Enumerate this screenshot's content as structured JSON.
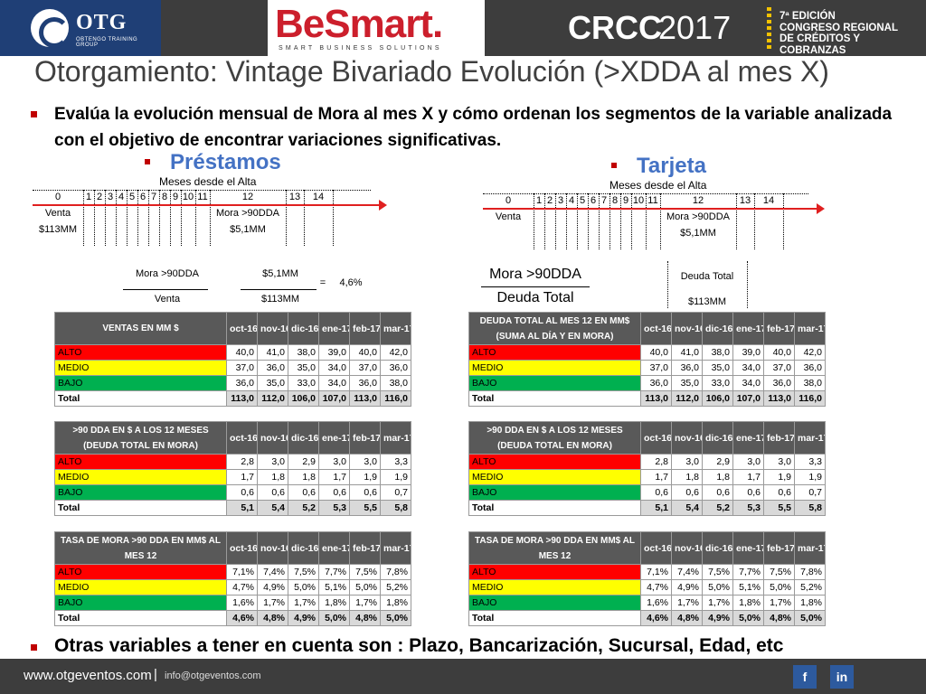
{
  "header": {
    "otg_name": "OTG",
    "otg_sub": "OBTENGO TRAINING GROUP",
    "besmart": "BeSmart.",
    "besmart_sub": "SMART BUSINESS SOLUTIONS",
    "crcc": "CRCC",
    "crcc_year": "2017",
    "crcc_line1": "7ª EDICIÓN",
    "crcc_line2": "CONGRESO REGIONAL",
    "crcc_line3": "DE CRÉDITOS Y COBRANZAS"
  },
  "title": "Otorgamiento: Vintage Bivariado Evolución (>XDDA al mes X)",
  "bullet_top": "Evalúa la evolución mensual de Mora al mes X y cómo ordenan los segmentos de la variable analizada con el objetivo de encontrar variaciones significativas.",
  "prestamos": {
    "heading": "Préstamos",
    "timeline_title": "Meses desde el Alta",
    "start_label": "Venta",
    "start_value": "$113MM",
    "end_label": "Mora >90DDA",
    "end_value": "$5,1MM",
    "formula": {
      "num_label": "Mora >90DDA",
      "den_label": "Venta",
      "num_value": "$5,1MM",
      "den_value": "$113MM",
      "equals": "=",
      "result": "4,6%"
    }
  },
  "tarjeta": {
    "heading": "Tarjeta",
    "timeline_title": "Meses desde el Alta",
    "start_label": "Venta",
    "end_label": "Mora >90DDA",
    "end_value": "$5,1MM",
    "formula": {
      "num_label": "Mora >90DDA",
      "den_label": "Deuda Total",
      "right_label": "Deuda Total",
      "right_value": "$113MM"
    }
  },
  "timeline_ticks": [
    "0",
    "1",
    "2",
    "3",
    "4",
    "5",
    "6",
    "7",
    "8",
    "9",
    "10",
    "11",
    "12",
    "13",
    "14"
  ],
  "months": [
    "oct-16",
    "nov-16",
    "dic-16",
    "ene-17",
    "feb-17",
    "mar-17"
  ],
  "tables": {
    "p1": {
      "header": "VENTAS  EN MM  $",
      "rows": [
        {
          "label": "ALTO",
          "v": [
            "40,0",
            "41,0",
            "38,0",
            "39,0",
            "40,0",
            "42,0"
          ]
        },
        {
          "label": "MEDIO",
          "v": [
            "37,0",
            "36,0",
            "35,0",
            "34,0",
            "37,0",
            "36,0"
          ]
        },
        {
          "label": "BAJO",
          "v": [
            "36,0",
            "35,0",
            "33,0",
            "34,0",
            "36,0",
            "38,0"
          ]
        },
        {
          "label": "Total",
          "v": [
            "113,0",
            "112,0",
            "106,0",
            "107,0",
            "113,0",
            "116,0"
          ]
        }
      ]
    },
    "t1": {
      "header": "DEUDA TOTAL AL MES 12 EN MM$ (SUMA AL DÍA Y EN MORA)",
      "rows": [
        {
          "label": "ALTO",
          "v": [
            "40,0",
            "41,0",
            "38,0",
            "39,0",
            "40,0",
            "42,0"
          ]
        },
        {
          "label": "MEDIO",
          "v": [
            "37,0",
            "36,0",
            "35,0",
            "34,0",
            "37,0",
            "36,0"
          ]
        },
        {
          "label": "BAJO",
          "v": [
            "36,0",
            "35,0",
            "33,0",
            "34,0",
            "36,0",
            "38,0"
          ]
        },
        {
          "label": "Total",
          "v": [
            "113,0",
            "112,0",
            "106,0",
            "107,0",
            "113,0",
            "116,0"
          ]
        }
      ]
    },
    "p2": {
      "header": ">90 DDA EN $ A LOS 12 MESES (DEUDA TOTAL EN MORA)",
      "rows": [
        {
          "label": "ALTO",
          "v": [
            "2,8",
            "3,0",
            "2,9",
            "3,0",
            "3,0",
            "3,3"
          ]
        },
        {
          "label": "MEDIO",
          "v": [
            "1,7",
            "1,8",
            "1,8",
            "1,7",
            "1,9",
            "1,9"
          ]
        },
        {
          "label": "BAJO",
          "v": [
            "0,6",
            "0,6",
            "0,6",
            "0,6",
            "0,6",
            "0,7"
          ]
        },
        {
          "label": "Total",
          "v": [
            "5,1",
            "5,4",
            "5,2",
            "5,3",
            "5,5",
            "5,8"
          ]
        }
      ]
    },
    "t2": {
      "header": ">90 DDA EN $ A LOS 12 MESES (DEUDA TOTAL EN MORA)",
      "rows": [
        {
          "label": "ALTO",
          "v": [
            "2,8",
            "3,0",
            "2,9",
            "3,0",
            "3,0",
            "3,3"
          ]
        },
        {
          "label": "MEDIO",
          "v": [
            "1,7",
            "1,8",
            "1,8",
            "1,7",
            "1,9",
            "1,9"
          ]
        },
        {
          "label": "BAJO",
          "v": [
            "0,6",
            "0,6",
            "0,6",
            "0,6",
            "0,6",
            "0,7"
          ]
        },
        {
          "label": "Total",
          "v": [
            "5,1",
            "5,4",
            "5,2",
            "5,3",
            "5,5",
            "5,8"
          ]
        }
      ]
    },
    "p3": {
      "header": "TASA DE MORA  >90 DDA EN MM$ AL MES 12",
      "rows": [
        {
          "label": "ALTO",
          "v": [
            "7,1%",
            "7,4%",
            "7,5%",
            "7,7%",
            "7,5%",
            "7,8%"
          ]
        },
        {
          "label": "MEDIO",
          "v": [
            "4,7%",
            "4,9%",
            "5,0%",
            "5,1%",
            "5,0%",
            "5,2%"
          ]
        },
        {
          "label": "BAJO",
          "v": [
            "1,6%",
            "1,7%",
            "1,7%",
            "1,8%",
            "1,7%",
            "1,8%"
          ]
        },
        {
          "label": "Total",
          "v": [
            "4,6%",
            "4,8%",
            "4,9%",
            "5,0%",
            "4,8%",
            "5,0%"
          ]
        }
      ]
    },
    "t3": {
      "header": "TASA DE MORA  >90 DDA EN MM$ AL MES 12",
      "rows": [
        {
          "label": "ALTO",
          "v": [
            "7,1%",
            "7,4%",
            "7,5%",
            "7,7%",
            "7,5%",
            "7,8%"
          ]
        },
        {
          "label": "MEDIO",
          "v": [
            "4,7%",
            "4,9%",
            "5,0%",
            "5,1%",
            "5,0%",
            "5,2%"
          ]
        },
        {
          "label": "BAJO",
          "v": [
            "1,6%",
            "1,7%",
            "1,7%",
            "1,8%",
            "1,7%",
            "1,8%"
          ]
        },
        {
          "label": "Total",
          "v": [
            "4,6%",
            "4,8%",
            "4,9%",
            "5,0%",
            "4,8%",
            "5,0%"
          ]
        }
      ]
    }
  },
  "bullet_bottom": "Otras variables a tener en cuenta son : Plazo, Bancarización, Sucursal, Edad, etc",
  "footer": {
    "web": "www.otgeventos.com",
    "sep": "|",
    "mail": "info@otgeventos.com",
    "facebook": "f",
    "linkedin": "in"
  },
  "colors": {
    "alto": "#ff0000",
    "medio": "#ffff00",
    "bajo": "#00b050",
    "header_band": "#3d3d3d",
    "accent_blue": "#4472c4"
  }
}
